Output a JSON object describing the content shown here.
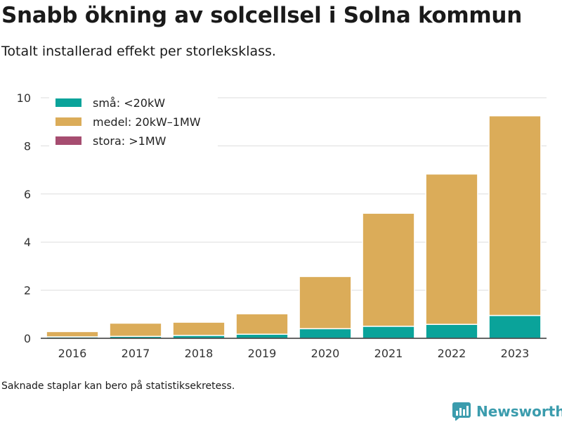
{
  "title": "Snabb ökning av solcellsel i Solna kommun",
  "subtitle": "Totalt installerad effekt per storleksklass.",
  "footnote": "Saknade staplar kan bero på statistiksekretess.",
  "brand": {
    "name": "Newsworthy",
    "icon": "bar-chart-logo-icon"
  },
  "chart_data": {
    "type": "bar",
    "stacked": true,
    "categories": [
      "2016",
      "2017",
      "2018",
      "2019",
      "2020",
      "2021",
      "2022",
      "2023"
    ],
    "series": [
      {
        "name": "små: <20kW",
        "color": "#0aa39a",
        "values": [
          0.06,
          0.08,
          0.12,
          0.17,
          0.4,
          0.5,
          0.58,
          0.95
        ]
      },
      {
        "name": "medel: 20kW–1MW",
        "color": "#dbac59",
        "values": [
          0.22,
          0.55,
          0.55,
          0.85,
          2.17,
          4.7,
          6.25,
          8.3
        ]
      },
      {
        "name": "stora: >1MW",
        "color": "#a64d70",
        "values": [
          0,
          0,
          0,
          0,
          0,
          0,
          0,
          0
        ]
      }
    ],
    "yticks": [
      0,
      2,
      4,
      6,
      8,
      10
    ],
    "ylim": [
      0,
      10
    ],
    "grid": true,
    "legend": "top-left"
  }
}
